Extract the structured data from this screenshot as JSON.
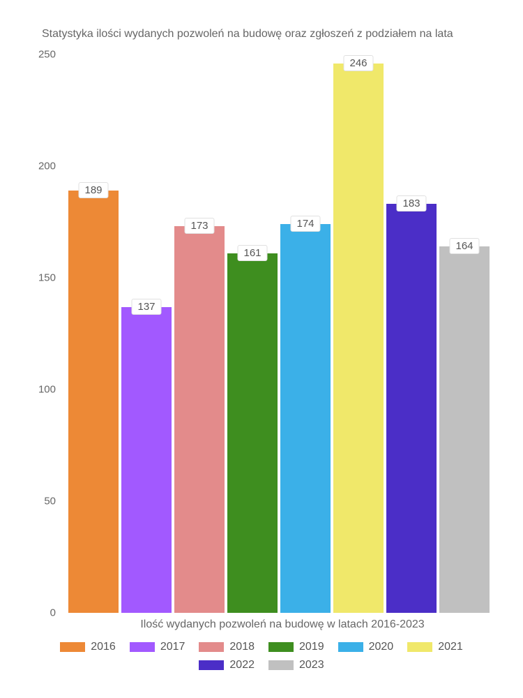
{
  "chart": {
    "type": "bar",
    "title": "Statystyka ilości wydanych pozwoleń na budowę oraz zgłoszeń z podziałem na lata",
    "xlabel": "Ilość wydanych pozwoleń na budowę w latach 2016-2023",
    "ylim": [
      0,
      250
    ],
    "yticks": [
      0,
      50,
      100,
      150,
      200,
      250
    ],
    "background_color": "#ffffff",
    "text_color": "#666666",
    "title_fontsize": 16,
    "tick_fontsize": 15,
    "label_fontsize": 16,
    "bar_label_bg": "#ffffff",
    "bar_label_border": "#e0e0e0",
    "series": [
      {
        "category": "2016",
        "value": 189,
        "color": "#ed8936"
      },
      {
        "category": "2017",
        "value": 137,
        "color": "#a259ff"
      },
      {
        "category": "2018",
        "value": 173,
        "color": "#e38b8b"
      },
      {
        "category": "2019",
        "value": 161,
        "color": "#3e8e1f"
      },
      {
        "category": "2020",
        "value": 174,
        "color": "#3bb0e8"
      },
      {
        "category": "2021",
        "value": 246,
        "color": "#f0e86a"
      },
      {
        "category": "2022",
        "value": 183,
        "color": "#4b2ec7"
      },
      {
        "category": "2023",
        "value": 164,
        "color": "#c0c0c0"
      }
    ]
  }
}
